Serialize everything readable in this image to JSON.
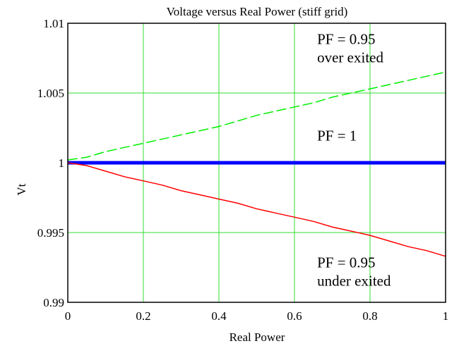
{
  "chart_data": {
    "type": "line",
    "title": "Voltage versus Real Power (stiff grid)",
    "xlabel": "Real Power",
    "ylabel": "Vt",
    "xlim": [
      0,
      1
    ],
    "ylim": [
      0.99,
      1.01
    ],
    "x_ticks": [
      0,
      0.2,
      0.4,
      0.6,
      0.8,
      1
    ],
    "x_tick_labels": [
      "0",
      "0.2",
      "0.4",
      "0.6",
      "0.8",
      "1"
    ],
    "y_ticks": [
      0.99,
      0.995,
      1,
      1.005,
      1.01
    ],
    "y_tick_labels": [
      "0.99",
      "0.995",
      "1",
      "1.005",
      "1.01"
    ],
    "grid": true,
    "legend": "none",
    "series": [
      {
        "color": "#00ee00",
        "dash": "dashed",
        "points": [
          [
            0,
            1.0002
          ],
          [
            0.05,
            1.0004
          ],
          [
            0.1,
            1.0008
          ],
          [
            0.15,
            1.0011
          ],
          [
            0.2,
            1.0014
          ],
          [
            0.25,
            1.0017
          ],
          [
            0.3,
            1.002
          ],
          [
            0.35,
            1.0023
          ],
          [
            0.4,
            1.0026
          ],
          [
            0.45,
            1.003
          ],
          [
            0.5,
            1.0034
          ],
          [
            0.55,
            1.0037
          ],
          [
            0.6,
            1.004
          ],
          [
            0.65,
            1.0043
          ],
          [
            0.7,
            1.0047
          ],
          [
            0.75,
            1.005
          ],
          [
            0.8,
            1.0053
          ],
          [
            0.85,
            1.0056
          ],
          [
            0.9,
            1.0059
          ],
          [
            0.95,
            1.0062
          ],
          [
            1,
            1.0065
          ]
        ]
      },
      {
        "color": "#0000ff",
        "dash": "solid",
        "points": [
          [
            0,
            1
          ],
          [
            1,
            1
          ]
        ]
      },
      {
        "color": "#ff0000",
        "dash": "solid",
        "points": [
          [
            0,
            1
          ],
          [
            0.05,
            0.9998
          ],
          [
            0.1,
            0.9994
          ],
          [
            0.15,
            0.999
          ],
          [
            0.2,
            0.9987
          ],
          [
            0.25,
            0.9984
          ],
          [
            0.3,
            0.998
          ],
          [
            0.35,
            0.9977
          ],
          [
            0.4,
            0.9974
          ],
          [
            0.45,
            0.9971
          ],
          [
            0.5,
            0.9967
          ],
          [
            0.55,
            0.9964
          ],
          [
            0.6,
            0.9961
          ],
          [
            0.65,
            0.9958
          ],
          [
            0.7,
            0.9954
          ],
          [
            0.75,
            0.9951
          ],
          [
            0.8,
            0.9948
          ],
          [
            0.85,
            0.9944
          ],
          [
            0.9,
            0.994
          ],
          [
            0.95,
            0.9937
          ],
          [
            1,
            0.9933
          ]
        ]
      }
    ],
    "annotations": [
      {
        "id": "pf095_over",
        "lines": [
          "PF = 0.95",
          "over exited"
        ],
        "x": 0.66,
        "y": 1.0085
      },
      {
        "id": "pf1",
        "lines": [
          "PF = 1"
        ],
        "x": 0.66,
        "y": 1.0016
      },
      {
        "id": "pf095_under",
        "lines": [
          "PF = 0.95",
          "under exited"
        ],
        "x": 0.66,
        "y": 0.9925
      }
    ]
  }
}
